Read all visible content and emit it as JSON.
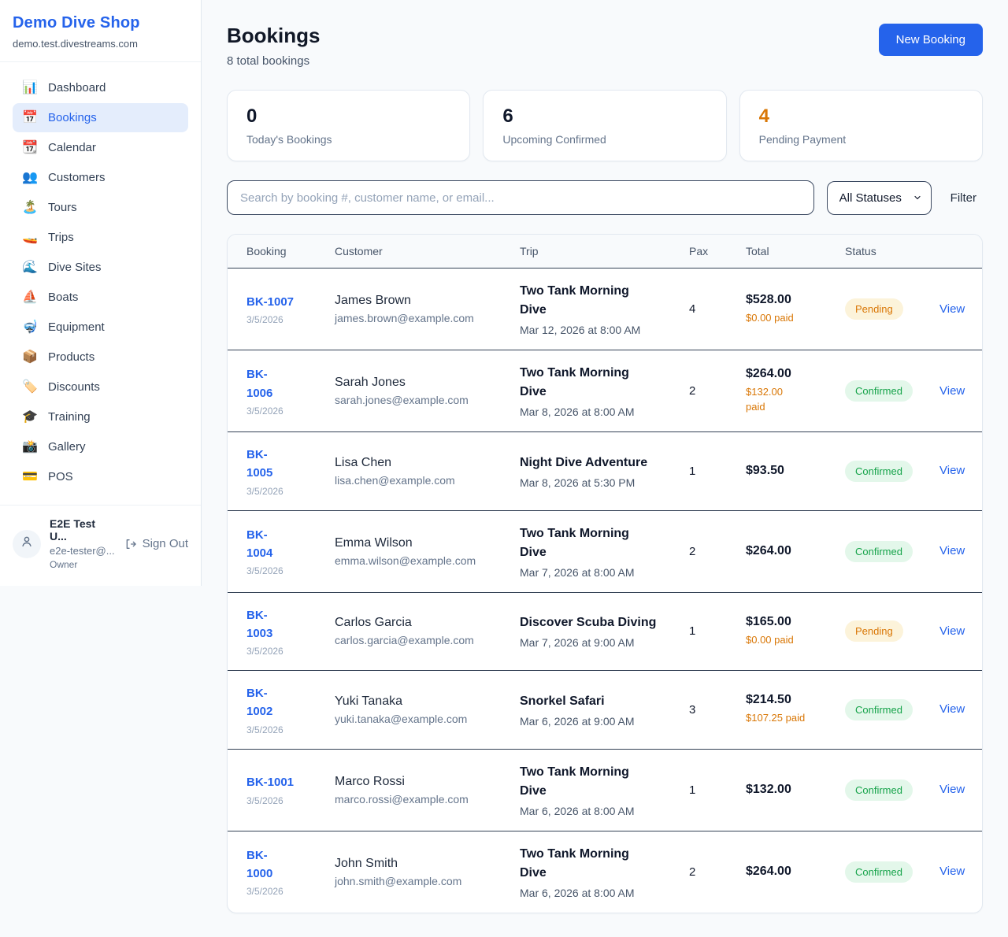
{
  "brand": {
    "name": "Demo Dive Shop",
    "domain": "demo.test.divestreams.com"
  },
  "sidebar": {
    "items": [
      {
        "key": "dashboard",
        "icon": "📊",
        "icon_name": "bar-chart-icon",
        "label": "Dashboard",
        "active": false
      },
      {
        "key": "bookings",
        "icon": "📅",
        "icon_name": "calendar-icon",
        "label": "Bookings",
        "active": true
      },
      {
        "key": "calendar",
        "icon": "📆",
        "icon_name": "tear-off-calendar-icon",
        "label": "Calendar",
        "active": false
      },
      {
        "key": "customers",
        "icon": "👥",
        "icon_name": "people-icon",
        "label": "Customers",
        "active": false
      },
      {
        "key": "tours",
        "icon": "🏝️",
        "icon_name": "island-icon",
        "label": "Tours",
        "active": false
      },
      {
        "key": "trips",
        "icon": "🚤",
        "icon_name": "speedboat-icon",
        "label": "Trips",
        "active": false
      },
      {
        "key": "dive-sites",
        "icon": "🌊",
        "icon_name": "wave-icon",
        "label": "Dive Sites",
        "active": false
      },
      {
        "key": "boats",
        "icon": "⛵",
        "icon_name": "sailboat-icon",
        "label": "Boats",
        "active": false
      },
      {
        "key": "equipment",
        "icon": "🤿",
        "icon_name": "diving-mask-icon",
        "label": "Equipment",
        "active": false
      },
      {
        "key": "products",
        "icon": "📦",
        "icon_name": "package-icon",
        "label": "Products",
        "active": false
      },
      {
        "key": "discounts",
        "icon": "🏷️",
        "icon_name": "tag-icon",
        "label": "Discounts",
        "active": false
      },
      {
        "key": "training",
        "icon": "🎓",
        "icon_name": "graduation-cap-icon",
        "label": "Training",
        "active": false
      },
      {
        "key": "gallery",
        "icon": "📸",
        "icon_name": "camera-icon",
        "label": "Gallery",
        "active": false
      },
      {
        "key": "pos",
        "icon": "💳",
        "icon_name": "credit-card-icon",
        "label": "POS",
        "active": false
      }
    ]
  },
  "user": {
    "name": "E2E Test U...",
    "email": "e2e-tester@...",
    "role": "Owner",
    "sign_out_label": "Sign Out"
  },
  "header": {
    "title": "Bookings",
    "subtitle": "8 total bookings",
    "new_booking_label": "New Booking"
  },
  "stats": [
    {
      "value": "0",
      "label": "Today's Bookings",
      "accent": false
    },
    {
      "value": "6",
      "label": "Upcoming Confirmed",
      "accent": false
    },
    {
      "value": "4",
      "label": "Pending Payment",
      "accent": true
    }
  ],
  "filters": {
    "search_placeholder": "Search by booking #, customer name, or email...",
    "status_selected": "All Statuses",
    "filter_label": "Filter"
  },
  "table": {
    "columns": [
      "Booking",
      "Customer",
      "Trip",
      "Pax",
      "Total",
      "Status",
      ""
    ],
    "rows": [
      {
        "id": "BK-1007",
        "id_wrap": false,
        "date": "3/5/2026",
        "customer": "James Brown",
        "email": "james.brown@example.com",
        "trip": "Two Tank Morning Dive",
        "trip_time": "Mar 12, 2026 at 8:00 AM",
        "pax": "4",
        "total": "$528.00",
        "paid": "$0.00 paid",
        "paid_wrap": false,
        "status": "Pending",
        "action": "View"
      },
      {
        "id": "BK-1006",
        "id_wrap": true,
        "date": "3/5/2026",
        "customer": "Sarah Jones",
        "email": "sarah.jones@example.com",
        "trip": "Two Tank Morning Dive",
        "trip_time": "Mar 8, 2026 at 8:00 AM",
        "pax": "2",
        "total": "$264.00",
        "paid": "$132.00 paid",
        "paid_wrap": true,
        "status": "Confirmed",
        "action": "View"
      },
      {
        "id": "BK-1005",
        "id_wrap": true,
        "date": "3/5/2026",
        "customer": "Lisa Chen",
        "email": "lisa.chen@example.com",
        "trip": "Night Dive Adventure",
        "trip_time": "Mar 8, 2026 at 5:30 PM",
        "pax": "1",
        "total": "$93.50",
        "paid": null,
        "paid_wrap": false,
        "status": "Confirmed",
        "action": "View"
      },
      {
        "id": "BK-1004",
        "id_wrap": true,
        "date": "3/5/2026",
        "customer": "Emma Wilson",
        "email": "emma.wilson@example.com",
        "trip": "Two Tank Morning Dive",
        "trip_time": "Mar 7, 2026 at 8:00 AM",
        "pax": "2",
        "total": "$264.00",
        "paid": null,
        "paid_wrap": false,
        "status": "Confirmed",
        "action": "View"
      },
      {
        "id": "BK-1003",
        "id_wrap": true,
        "date": "3/5/2026",
        "customer": "Carlos Garcia",
        "email": "carlos.garcia@example.com",
        "trip": "Discover Scuba Diving",
        "trip_time": "Mar 7, 2026 at 9:00 AM",
        "pax": "1",
        "total": "$165.00",
        "paid": "$0.00 paid",
        "paid_wrap": false,
        "status": "Pending",
        "action": "View"
      },
      {
        "id": "BK-1002",
        "id_wrap": true,
        "date": "3/5/2026",
        "customer": "Yuki Tanaka",
        "email": "yuki.tanaka@example.com",
        "trip": "Snorkel Safari",
        "trip_time": "Mar 6, 2026 at 9:00 AM",
        "pax": "3",
        "total": "$214.50",
        "paid": "$107.25 paid",
        "paid_wrap": false,
        "status": "Confirmed",
        "action": "View"
      },
      {
        "id": "BK-1001",
        "id_wrap": false,
        "date": "3/5/2026",
        "customer": "Marco Rossi",
        "email": "marco.rossi@example.com",
        "trip": "Two Tank Morning Dive",
        "trip_time": "Mar 6, 2026 at 8:00 AM",
        "pax": "1",
        "total": "$132.00",
        "paid": null,
        "paid_wrap": false,
        "status": "Confirmed",
        "action": "View"
      },
      {
        "id": "BK-1000",
        "id_wrap": true,
        "date": "3/5/2026",
        "customer": "John Smith",
        "email": "john.smith@example.com",
        "trip": "Two Tank Morning Dive",
        "trip_time": "Mar 6, 2026 at 8:00 AM",
        "pax": "2",
        "total": "$264.00",
        "paid": null,
        "paid_wrap": false,
        "status": "Confirmed",
        "action": "View"
      }
    ]
  },
  "colors": {
    "accent_blue": "#2563eb",
    "pending_orange": "#d97706",
    "confirmed_green": "#16a34a",
    "pending_badge_bg": "#fcf3da",
    "confirmed_badge_bg": "#e3f7ea",
    "page_bg": "#f8fafc"
  }
}
